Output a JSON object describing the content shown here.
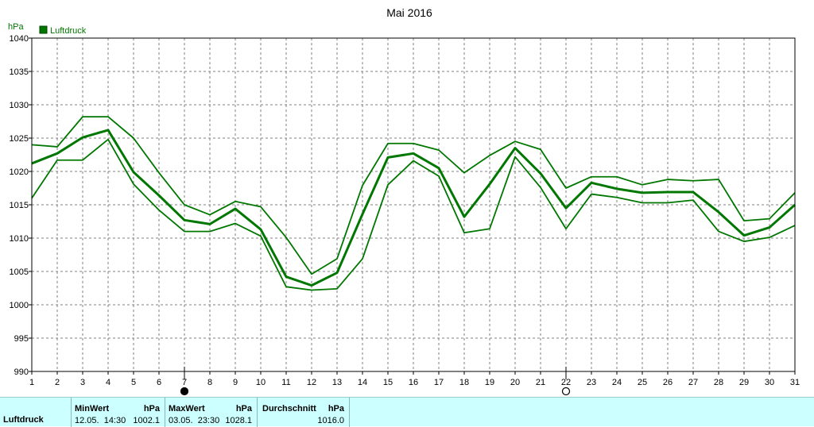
{
  "chart_data": {
    "type": "line",
    "title": "Mai 2016",
    "ylabel": "hPa",
    "ylim": [
      990,
      1040
    ],
    "yticks": [
      990,
      995,
      1000,
      1005,
      1010,
      1015,
      1020,
      1025,
      1030,
      1035,
      1040
    ],
    "x": [
      1,
      2,
      3,
      4,
      5,
      6,
      7,
      8,
      9,
      10,
      11,
      12,
      13,
      14,
      15,
      16,
      17,
      18,
      19,
      20,
      21,
      22,
      23,
      24,
      25,
      26,
      27,
      28,
      29,
      30,
      31
    ],
    "xlim": [
      1,
      31
    ],
    "grid": true,
    "legend": {
      "position": "top-left",
      "entries": [
        "Luftdruck"
      ]
    },
    "color": "#007700",
    "series": [
      {
        "name": "Luftdruck",
        "role": "avg",
        "values": [
          1021.2,
          1022.7,
          1025.1,
          1026.2,
          1019.9,
          1016.4,
          1012.7,
          1012.1,
          1014.4,
          1011.3,
          1004.2,
          1002.9,
          1004.8,
          1013.6,
          1022.1,
          1022.7,
          1020.5,
          1013.2,
          1018.1,
          1023.5,
          1019.7,
          1014.5,
          1018.3,
          1017.4,
          1016.8,
          1016.9,
          1016.9,
          1013.9,
          1010.4,
          1011.6,
          1015.0
        ]
      },
      {
        "role": "max",
        "values": [
          1024.0,
          1023.7,
          1028.2,
          1028.2,
          1025.0,
          1019.8,
          1015.0,
          1013.5,
          1015.5,
          1014.7,
          1010.1,
          1004.6,
          1006.9,
          1017.9,
          1024.2,
          1024.2,
          1023.2,
          1019.8,
          1022.4,
          1024.5,
          1023.3,
          1017.5,
          1019.2,
          1019.2,
          1018.0,
          1018.8,
          1018.6,
          1018.8,
          1012.6,
          1012.9,
          1016.8
        ]
      },
      {
        "role": "min",
        "values": [
          1016.0,
          1021.7,
          1021.7,
          1024.8,
          1018.1,
          1014.2,
          1011.0,
          1011.0,
          1012.2,
          1010.3,
          1002.7,
          1002.2,
          1002.4,
          1006.9,
          1018.0,
          1021.6,
          1019.3,
          1010.8,
          1011.4,
          1022.2,
          1017.6,
          1011.4,
          1016.6,
          1016.1,
          1015.3,
          1015.3,
          1015.7,
          1011.0,
          1009.5,
          1010.1,
          1011.9
        ]
      }
    ],
    "moon_markers": [
      {
        "day": 7,
        "phase": "new-moon"
      },
      {
        "day": 22,
        "phase": "full-moon"
      }
    ]
  },
  "stats": {
    "row_label": "Luftdruck",
    "min": {
      "label": "MinWert",
      "unit": "hPa",
      "time": "12.05.  14:30",
      "value": "1002.1"
    },
    "max": {
      "label": "MaxWert",
      "unit": "hPa",
      "time": "03.05.  23:30",
      "value": "1028.1"
    },
    "avg": {
      "label": "Durchschnitt",
      "unit": "hPa",
      "value": "1016.0"
    }
  }
}
